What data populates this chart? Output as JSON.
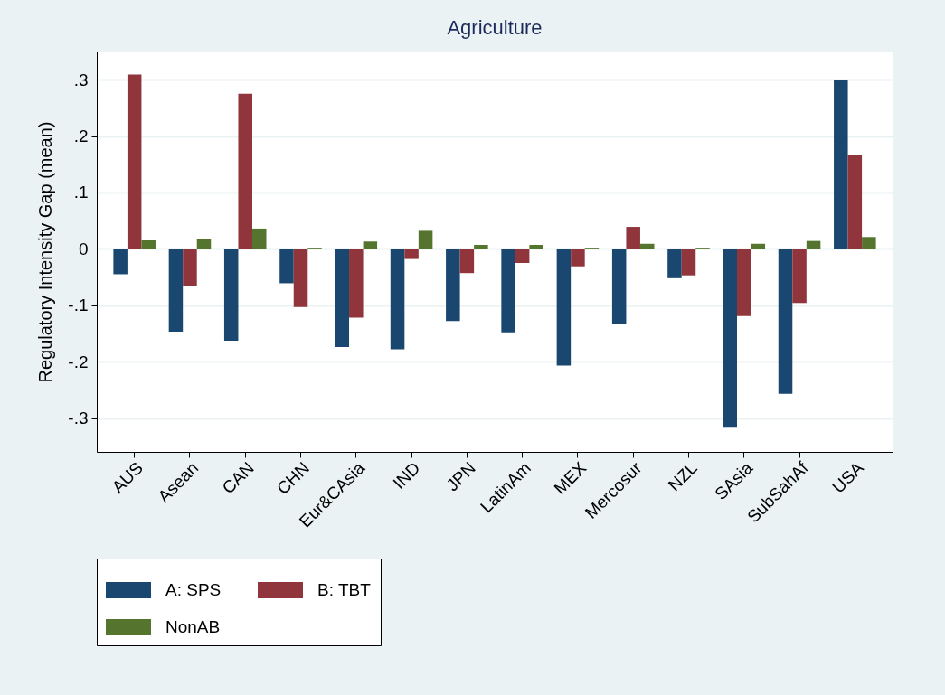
{
  "chart_data": {
    "type": "bar",
    "title": "Agriculture",
    "ylabel": "Regulatory Intensity Gap (mean)",
    "categories": [
      "AUS",
      "Asean",
      "CAN",
      "CHN",
      "Eur&CAsia",
      "IND",
      "JPN",
      "LatinAm",
      "MEX",
      "Mercosur",
      "NZL",
      "SAsia",
      "SubSahAf",
      "USA"
    ],
    "series": [
      {
        "name": "A: SPS",
        "color": "#1a476f",
        "values": [
          -0.045,
          -0.147,
          -0.163,
          -0.061,
          -0.174,
          -0.178,
          -0.128,
          -0.148,
          -0.207,
          -0.134,
          -0.052,
          -0.317,
          -0.257,
          0.299
        ]
      },
      {
        "name": "B: TBT",
        "color": "#90353b",
        "values": [
          0.309,
          -0.066,
          0.275,
          -0.103,
          -0.122,
          -0.018,
          -0.043,
          -0.025,
          -0.031,
          0.039,
          -0.047,
          -0.119,
          -0.096,
          0.167
        ]
      },
      {
        "name": "NonAB",
        "color": "#55752f",
        "values": [
          0.015,
          0.018,
          0.036,
          0.002,
          0.013,
          0.032,
          0.007,
          0.007,
          0.002,
          0.009,
          0.002,
          0.009,
          0.014,
          0.021
        ]
      }
    ],
    "ylim": [
      -0.36,
      0.35
    ],
    "yticks": [
      {
        "value": -0.3,
        "label": "-.3"
      },
      {
        "value": -0.2,
        "label": "-.2"
      },
      {
        "value": -0.1,
        "label": "-.1"
      },
      0,
      {
        "value": 0.1,
        "label": ".1"
      },
      {
        "value": 0.2,
        "label": ".2"
      },
      {
        "value": 0.3,
        "label": ".3"
      }
    ],
    "grid": true,
    "legend": "bottom"
  }
}
